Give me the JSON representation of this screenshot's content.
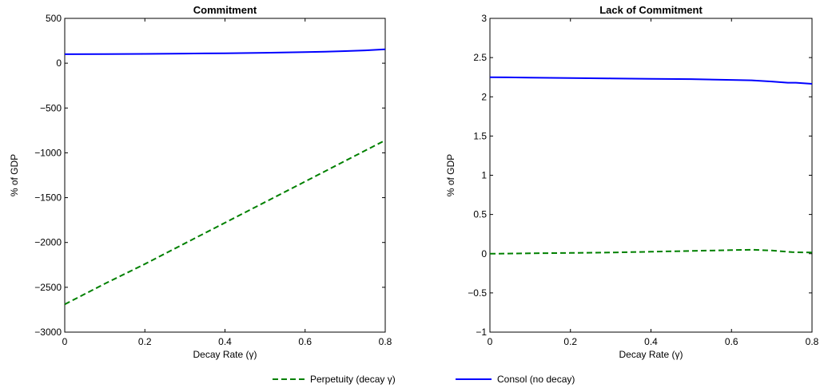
{
  "legend": {
    "items": [
      {
        "label": "Perpetuity (decay γ)",
        "color": "#008000",
        "style": "dashed"
      },
      {
        "label": "Consol (no decay)",
        "color": "#0000ff",
        "style": "solid"
      }
    ]
  },
  "chart_data": [
    {
      "type": "line",
      "title": "Commitment",
      "xlabel": "Decay Rate (γ)",
      "ylabel": "% of GDP",
      "xlim": [
        0,
        0.8
      ],
      "ylim": [
        -3000,
        500
      ],
      "xticks": [
        0,
        0.2,
        0.4,
        0.6,
        0.8
      ],
      "xtick_labels": [
        "0",
        "0.2",
        "0.4",
        "0.6",
        "0.8"
      ],
      "yticks": [
        -3000,
        -2500,
        -2000,
        -1500,
        -1000,
        -500,
        0,
        500
      ],
      "ytick_labels": [
        "−3000",
        "−2500",
        "−2000",
        "−1500",
        "−1000",
        "−500",
        "0",
        "500"
      ],
      "grid": false,
      "series": [
        {
          "name": "Perpetuity (decay γ)",
          "color": "#008000",
          "style": "dashed",
          "x": [
            0,
            0.1,
            0.2,
            0.3,
            0.4,
            0.5,
            0.6,
            0.7,
            0.8
          ],
          "y": [
            -2690,
            -2460,
            -2240,
            -2010,
            -1780,
            -1550,
            -1320,
            -1090,
            -860
          ]
        },
        {
          "name": "Consol (no decay)",
          "color": "#0000ff",
          "style": "solid",
          "x": [
            0,
            0.1,
            0.2,
            0.3,
            0.4,
            0.5,
            0.6,
            0.65,
            0.7,
            0.75,
            0.8
          ],
          "y": [
            100,
            102,
            104,
            107,
            111,
            116,
            123,
            128,
            135,
            143,
            155
          ]
        }
      ]
    },
    {
      "type": "line",
      "title": "Lack of Commitment",
      "xlabel": "Decay Rate (γ)",
      "ylabel": "% of GDP",
      "xlim": [
        0,
        0.8
      ],
      "ylim": [
        -1,
        3
      ],
      "xticks": [
        0,
        0.2,
        0.4,
        0.6,
        0.8
      ],
      "xtick_labels": [
        "0",
        "0.2",
        "0.4",
        "0.6",
        "0.8"
      ],
      "yticks": [
        -1,
        -0.5,
        0,
        0.5,
        1,
        1.5,
        2,
        2.5,
        3
      ],
      "ytick_labels": [
        "−1",
        "−0.5",
        "0",
        "0.5",
        "1",
        "1.5",
        "2",
        "2.5",
        "3"
      ],
      "grid": false,
      "series": [
        {
          "name": "Perpetuity (decay γ)",
          "color": "#008000",
          "style": "dashed",
          "x": [
            0,
            0.1,
            0.2,
            0.3,
            0.4,
            0.5,
            0.6,
            0.65,
            0.7,
            0.75,
            0.8
          ],
          "y": [
            0.0,
            0.005,
            0.01,
            0.015,
            0.025,
            0.035,
            0.045,
            0.05,
            0.04,
            0.02,
            0.015
          ]
        },
        {
          "name": "Consol (no decay)",
          "color": "#0000ff",
          "style": "solid",
          "x": [
            0,
            0.1,
            0.2,
            0.3,
            0.4,
            0.5,
            0.6,
            0.65,
            0.7,
            0.74,
            0.76,
            0.8
          ],
          "y": [
            2.25,
            2.245,
            2.24,
            2.235,
            2.23,
            2.225,
            2.215,
            2.21,
            2.195,
            2.18,
            2.18,
            2.165
          ]
        }
      ]
    }
  ]
}
